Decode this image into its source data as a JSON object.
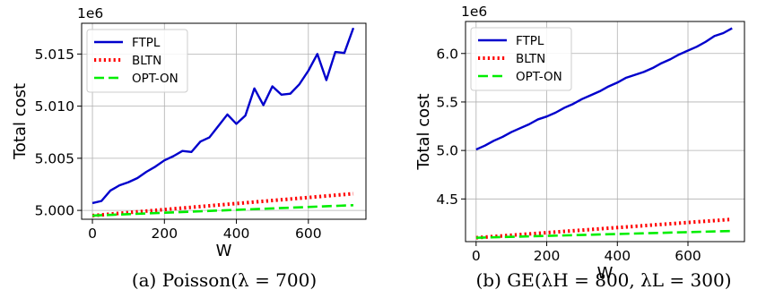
{
  "captions": [
    "(a)  Poisson(λ = 700)",
    "(b) GE(λH = 800, λL = 300)"
  ],
  "chart_data": [
    {
      "type": "line",
      "title": "",
      "xlabel": "W",
      "ylabel": "Total cost",
      "offset_text": "1e6",
      "xlim": [
        -30,
        760
      ],
      "ylim": [
        4.99915,
        5.01795
      ],
      "xticks": [
        0,
        200,
        400,
        600
      ],
      "xtick_labels": [
        "0",
        "200",
        "400",
        "600"
      ],
      "yticks": [
        5.0,
        5.005,
        5.01,
        5.015
      ],
      "ytick_labels": [
        "5.000",
        "5.005",
        "5.010",
        "5.015"
      ],
      "grid": true,
      "legend_position": "upper-left",
      "series": [
        {
          "name": "FTPL",
          "color": "#0000cc",
          "style": "solid",
          "x": [
            0,
            25,
            50,
            75,
            100,
            125,
            150,
            175,
            200,
            225,
            250,
            275,
            300,
            325,
            350,
            375,
            400,
            425,
            450,
            475,
            500,
            525,
            550,
            575,
            600,
            625,
            650,
            675,
            700,
            725
          ],
          "y": [
            5.0007,
            5.0009,
            5.0019,
            5.0024,
            5.0027,
            5.0031,
            5.0037,
            5.0042,
            5.0048,
            5.0052,
            5.0057,
            5.0056,
            5.0066,
            5.007,
            5.0081,
            5.0092,
            5.0083,
            5.0091,
            5.0117,
            5.0101,
            5.0119,
            5.0111,
            5.0112,
            5.0121,
            5.0134,
            5.015,
            5.0125,
            5.0152,
            5.0151,
            5.0175
          ]
        },
        {
          "name": "BLTN",
          "color": "#ff0000",
          "style": "dotted",
          "x": [
            0,
            725
          ],
          "y": [
            4.9995,
            5.0016
          ]
        },
        {
          "name": "OPT-ON",
          "color": "#00ee00",
          "style": "dashed",
          "x": [
            0,
            725
          ],
          "y": [
            4.9995,
            5.0005
          ]
        }
      ]
    },
    {
      "type": "line",
      "title": "",
      "xlabel": "W",
      "ylabel": "Total cost",
      "offset_text": "1e6",
      "xlim": [
        -30,
        760
      ],
      "ylim": [
        4.06,
        6.33
      ],
      "xticks": [
        0,
        200,
        400,
        600
      ],
      "xtick_labels": [
        "0",
        "200",
        "400",
        "600"
      ],
      "yticks": [
        4.5,
        5.0,
        5.5,
        6.0
      ],
      "ytick_labels": [
        "4.5",
        "5.0",
        "5.5",
        "6.0"
      ],
      "grid": true,
      "legend_position": "upper-left",
      "series": [
        {
          "name": "FTPL",
          "color": "#0000cc",
          "style": "solid",
          "x": [
            0,
            25,
            50,
            75,
            100,
            125,
            150,
            175,
            200,
            225,
            250,
            275,
            300,
            325,
            350,
            375,
            400,
            425,
            450,
            475,
            500,
            525,
            550,
            575,
            600,
            625,
            650,
            675,
            700,
            725
          ],
          "y": [
            5.01,
            5.05,
            5.1,
            5.14,
            5.19,
            5.23,
            5.27,
            5.32,
            5.35,
            5.39,
            5.44,
            5.48,
            5.53,
            5.57,
            5.61,
            5.66,
            5.7,
            5.75,
            5.78,
            5.81,
            5.85,
            5.9,
            5.94,
            5.99,
            6.03,
            6.07,
            6.12,
            6.18,
            6.21,
            6.26
          ]
        },
        {
          "name": "BLTN",
          "color": "#ff0000",
          "style": "dotted",
          "x": [
            0,
            725
          ],
          "y": [
            4.1,
            4.29
          ]
        },
        {
          "name": "OPT-ON",
          "color": "#00ee00",
          "style": "dashed",
          "x": [
            0,
            725
          ],
          "y": [
            4.1,
            4.17
          ]
        }
      ]
    }
  ]
}
